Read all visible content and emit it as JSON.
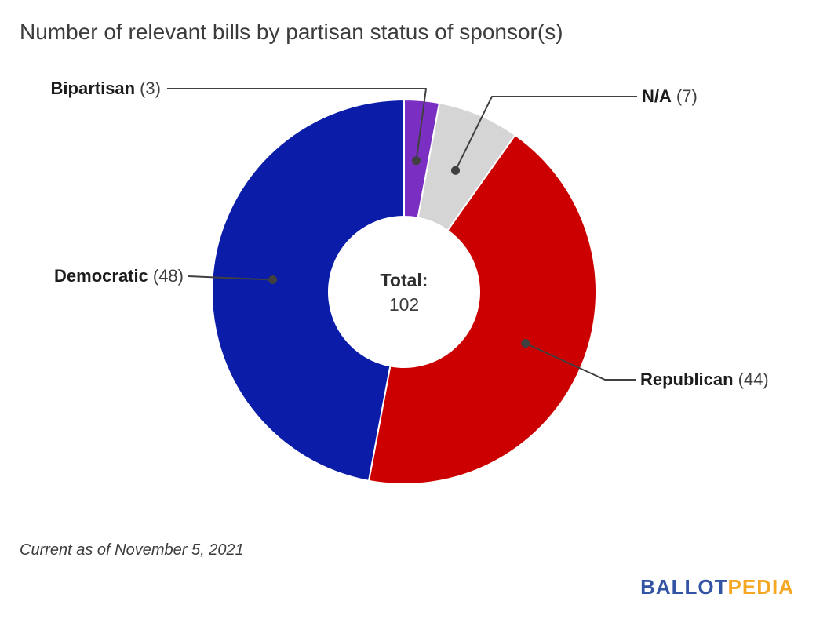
{
  "title": "Number of relevant bills by partisan status of sponsor(s)",
  "footer": {
    "note": "Current as of November 5, 2021"
  },
  "logo": {
    "part1": "BALLOT",
    "part2": "PEDIA",
    "color1": "#3353a4",
    "color2": "#f5a623"
  },
  "chart_data": {
    "type": "pie",
    "subtype": "donut",
    "title": "Number of relevant bills by partisan status of sponsor(s)",
    "total": 102,
    "center_label": "Total:",
    "center_value": "102",
    "start_angle_deg": 0,
    "direction": "clockwise",
    "leader_line_color": "#404040",
    "slices": [
      {
        "label": "Bipartisan",
        "value": 3,
        "count_text": "(3)",
        "color": "#7b2fc2"
      },
      {
        "label": "N/A",
        "value": 7,
        "count_text": "(7)",
        "color": "#d5d5d5"
      },
      {
        "label": "Republican",
        "value": 44,
        "count_text": "(44)",
        "color": "#cc0000"
      },
      {
        "label": "Democratic",
        "value": 48,
        "count_text": "(48)",
        "color": "#0a1ca8"
      }
    ]
  }
}
